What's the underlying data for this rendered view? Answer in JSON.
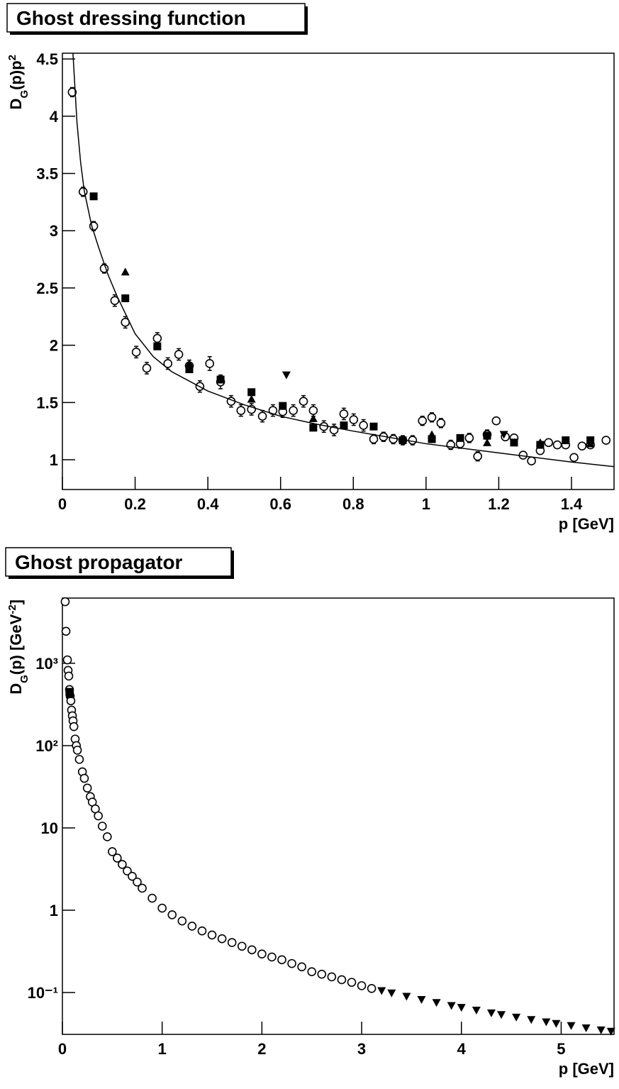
{
  "chart_data": [
    {
      "type": "scatter",
      "title": "Ghost dressing function",
      "xlabel": "p [GeV]",
      "ylabel": [
        {
          "text": "D"
        },
        {
          "text": "G",
          "shift": "sub"
        },
        {
          "text": "(p)p"
        },
        {
          "text": "2",
          "shift": "super"
        }
      ],
      "xlim": [
        0,
        1.517
      ],
      "ylim": [
        0.74,
        4.55
      ],
      "xticks": [
        0,
        0.2,
        0.4,
        0.6,
        0.8,
        1,
        1.2,
        1.4
      ],
      "yticks": [
        1,
        1.5,
        2,
        2.5,
        3,
        3.5,
        4,
        4.5
      ],
      "series": [
        {
          "marker": "circle",
          "color": "#000000",
          "x": [
            0.027,
            0.057,
            0.086,
            0.115,
            0.144,
            0.173,
            0.203,
            0.232,
            0.261,
            0.29,
            0.32,
            0.349,
            0.378,
            0.405,
            0.435,
            0.464,
            0.491,
            0.52,
            0.55,
            0.579,
            0.606,
            0.635,
            0.663,
            0.69,
            0.719,
            0.747,
            0.774,
            0.801,
            0.828,
            0.856,
            0.883,
            0.91,
            0.936,
            0.963,
            0.99,
            1.016,
            1.041,
            1.068,
            1.094,
            1.119,
            1.142,
            1.168,
            1.193,
            1.218,
            1.242,
            1.267,
            1.29,
            1.314,
            1.337,
            1.361,
            1.384,
            1.407,
            1.429,
            1.452,
            1.495
          ],
          "values": [
            4.21,
            3.34,
            3.04,
            2.67,
            2.39,
            2.2,
            1.94,
            1.8,
            2.06,
            1.84,
            1.92,
            1.82,
            1.64,
            1.84,
            1.68,
            1.51,
            1.43,
            1.44,
            1.38,
            1.43,
            1.42,
            1.43,
            1.51,
            1.43,
            1.29,
            1.26,
            1.4,
            1.35,
            1.3,
            1.18,
            1.2,
            1.18,
            1.17,
            1.17,
            1.34,
            1.37,
            1.32,
            1.13,
            1.14,
            1.19,
            1.03,
            1.22,
            1.34,
            1.2,
            1.19,
            1.04,
            0.99,
            1.08,
            1.15,
            1.13,
            1.13,
            1.02,
            1.12,
            1.13,
            1.17
          ],
          "errors": [
            0.04,
            0.04,
            0.04,
            0.04,
            0.05,
            0.05,
            0.05,
            0.05,
            0.05,
            0.05,
            0.05,
            0.05,
            0.05,
            0.06,
            0.06,
            0.05,
            0.05,
            0.05,
            0.05,
            0.05,
            0.05,
            0.05,
            0.05,
            0.05,
            0.05,
            0.05,
            0.05,
            0.05,
            0.05,
            0.04,
            0.04,
            0.04,
            0.04,
            0.04,
            0.04,
            0.04,
            0.04,
            0.04,
            0.04,
            0.04,
            0.04,
            0.04,
            0.03,
            0.03,
            0.03,
            0.03,
            0.03,
            0.03,
            0.03,
            0.03,
            0.03,
            0.02,
            0.02,
            0.02,
            0.02
          ]
        },
        {
          "marker": "square",
          "color": "#000000",
          "x": [
            0.086,
            0.173,
            0.261,
            0.349,
            0.435,
            0.52,
            0.606,
            0.69,
            0.774,
            0.856,
            0.936,
            1.016,
            1.094,
            1.168,
            1.242,
            1.314,
            1.384,
            1.452
          ],
          "values": [
            3.3,
            2.41,
            1.99,
            1.79,
            1.7,
            1.59,
            1.47,
            1.28,
            1.3,
            1.29,
            1.17,
            1.18,
            1.19,
            1.21,
            1.15,
            1.13,
            1.17,
            1.17
          ]
        },
        {
          "marker": "triangle-up",
          "color": "#000000",
          "x": [
            0.173,
            0.349,
            0.52,
            0.69,
            1.016,
            1.168,
            1.314,
            1.452
          ],
          "values": [
            2.64,
            1.84,
            1.53,
            1.36,
            1.22,
            1.15,
            1.15,
            1.14
          ]
        },
        {
          "marker": "triangle-down",
          "color": "#000000",
          "x": [
            0.616,
            1.214
          ],
          "values": [
            1.74,
            1.22
          ]
        },
        {
          "marker": "line",
          "color": "#000000",
          "x": [
            0.029,
            0.04,
            0.05,
            0.06,
            0.08,
            0.1,
            0.125,
            0.15,
            0.2,
            0.25,
            0.3,
            0.4,
            0.5,
            0.6,
            0.7,
            0.8,
            1.0,
            1.2,
            1.4,
            1.517
          ],
          "values": [
            4.55,
            3.95,
            3.6,
            3.35,
            3.05,
            2.85,
            2.62,
            2.43,
            2.1,
            1.9,
            1.77,
            1.6,
            1.48,
            1.38,
            1.31,
            1.25,
            1.14,
            1.06,
            0.98,
            0.94
          ]
        }
      ]
    },
    {
      "type": "scatter",
      "title": "Ghost propagator",
      "xlabel": "p [GeV]",
      "ylabel": [
        {
          "text": "D"
        },
        {
          "text": "G",
          "shift": "sub"
        },
        {
          "text": "(p) [GeV"
        },
        {
          "text": "-2",
          "shift": "super"
        },
        {
          "text": "]"
        }
      ],
      "xlim": [
        0,
        5.53
      ],
      "ylim": [
        0.031,
        6200
      ],
      "ylog": true,
      "xticks": [
        0,
        1,
        2,
        3,
        4,
        5
      ],
      "yticks": [
        {
          "value": 0.1,
          "label": "10⁻¹"
        },
        1,
        10,
        {
          "value": 100,
          "label": "10²"
        },
        {
          "value": 1000,
          "label": "10³"
        }
      ],
      "series": [
        {
          "marker": "circle",
          "color": "#000000",
          "x": [
            0.028,
            0.036,
            0.05,
            0.057,
            0.064,
            0.071,
            0.078,
            0.085,
            0.092,
            0.1,
            0.107,
            0.115,
            0.128,
            0.14,
            0.15,
            0.17,
            0.2,
            0.22,
            0.25,
            0.28,
            0.3,
            0.33,
            0.36,
            0.4,
            0.45,
            0.5,
            0.55,
            0.6,
            0.65,
            0.7,
            0.75,
            0.8,
            0.9,
            1.0,
            1.1,
            1.2,
            1.3,
            1.4,
            1.5,
            1.6,
            1.7,
            1.8,
            1.9,
            2.0,
            2.1,
            2.2,
            2.3,
            2.4,
            2.5,
            2.6,
            2.7,
            2.8,
            2.9,
            3.0,
            3.1
          ],
          "values": [
            5600,
            2450,
            1100,
            820,
            700,
            480,
            400,
            350,
            270,
            230,
            200,
            170,
            120,
            100,
            88,
            68,
            48,
            40,
            30.5,
            24,
            20.6,
            17,
            14,
            10.5,
            7.8,
            5.15,
            4.3,
            3.6,
            3.0,
            2.58,
            2.2,
            1.85,
            1.4,
            1.06,
            0.88,
            0.74,
            0.64,
            0.56,
            0.5,
            0.45,
            0.405,
            0.365,
            0.33,
            0.294,
            0.27,
            0.25,
            0.225,
            0.205,
            0.179,
            0.167,
            0.155,
            0.143,
            0.133,
            0.121,
            0.112
          ]
        },
        {
          "marker": "square",
          "color": "#000000",
          "x": [
            0.07,
            0.075
          ],
          "values": [
            450,
            420
          ]
        },
        {
          "marker": "triangle-down",
          "color": "#000000",
          "x": [
            3.2,
            3.3,
            3.45,
            3.6,
            3.75,
            3.9,
            4.0,
            4.15,
            4.3,
            4.4,
            4.55,
            4.7,
            4.85,
            4.95,
            5.1,
            5.25,
            5.4,
            5.5
          ],
          "values": [
            0.105,
            0.0984,
            0.0897,
            0.082,
            0.0753,
            0.0693,
            0.0657,
            0.0609,
            0.0564,
            0.0538,
            0.0501,
            0.0468,
            0.0439,
            0.042,
            0.0395,
            0.0371,
            0.035,
            0.0337
          ]
        }
      ]
    }
  ]
}
